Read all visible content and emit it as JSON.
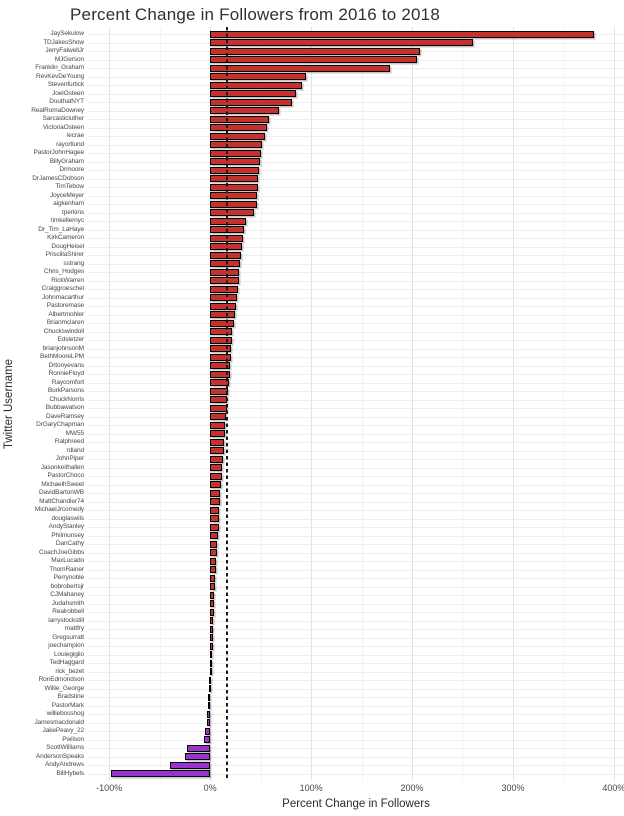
{
  "chart_data": {
    "type": "bar",
    "orientation": "horizontal",
    "title": "Percent Change in Followers from 2016 to 2018",
    "xlabel": "Percent Change in Followers",
    "ylabel": "Twitter Username",
    "xlim": [
      -121,
      410
    ],
    "x_ticks": [
      -100,
      0,
      100,
      200,
      300,
      400
    ],
    "x_tick_labels": [
      "-100%",
      "0%",
      "100%",
      "200%",
      "300%",
      "400%"
    ],
    "x_minor_ticks": [
      -50,
      50,
      150,
      250,
      350
    ],
    "grid": true,
    "reference_line": 17,
    "colors": {
      "positive": "#c5312d",
      "negative": "#9a32cd",
      "bar_border": "#000000",
      "reference_line": "#1a1a1a"
    },
    "categories": [
      "JaySekulow",
      "TDJakesShow",
      "JerryFalwellJr",
      "MJGerson",
      "Franklin_Graham",
      "RevKevDeYoung",
      "Stevenfurtick",
      "JoelOsteen",
      "DouthatNYT",
      "RealRomaDowney",
      "Sarcasticluther",
      "VictoriaOsteen",
      "lecrae",
      "rayortlund",
      "PastorJohnHagee",
      "BillyGraham",
      "Drmoore",
      "DrJamesCDobson",
      "TimTebow",
      "JoyceMeyer",
      "aigkenham",
      "tperkins",
      "timkellernyc",
      "Dr_Tim_LaHaye",
      "KirkCameron",
      "DougHeisel",
      "PriscillaShirer",
      "sstrang",
      "Chris_Hodges",
      "RickWarren",
      "Craiggroeschel",
      "Johnmacarthur",
      "Pastoremase",
      "Albertmohler",
      "Brianmclaren",
      "Chuckswindoll",
      "Edstetzer",
      "brianjohnsonM",
      "BethMooreLPM",
      "Drtonyevans",
      "RonnieFloyd",
      "Raycomfort",
      "BurkParsons",
      "ChuckNorris",
      "Bubbawatson",
      "DaveRamsey",
      "DrGaryChapman",
      "MW55",
      "Ralphreed",
      "rdland",
      "JohnPiper",
      "Jasonkeithallen",
      "PastorChoco",
      "MichaelhSweet",
      "DavidBartonWB",
      "MattChandler74",
      "MichaelJrcomedy",
      "douglaswils",
      "AndyStanley",
      "Philmunsey",
      "DanCathy",
      "CoachJoeGibbs",
      "MaxLucado",
      "ThomRainer",
      "Perrynoble",
      "bobrobertsjr",
      "CJMahaney",
      "Judahsmith",
      "Realrobbell",
      "larrystockstill",
      "mattfry",
      "Gregsurratt",
      "joechampion",
      "Louiegiglio",
      "TedHaggard",
      "rick_bezet",
      "RonEdmondson",
      "Willie_George",
      "Bradstine",
      "PastorMark",
      "williebosshog",
      "Jamesmacdonald",
      "JakePeavy_22",
      "Pwilson",
      "ScottWilliams",
      "AndersonSpeaks",
      "AndyAndrews",
      "BillHybels"
    ],
    "values": [
      380,
      260,
      208,
      205,
      178,
      95,
      91,
      85,
      81,
      68,
      58,
      56,
      54,
      51,
      50,
      49,
      48,
      47.5,
      47,
      46.5,
      46,
      43,
      36,
      34,
      33,
      32,
      31,
      29.5,
      29,
      28.5,
      27.5,
      26.5,
      25.5,
      25,
      24,
      22,
      21.5,
      21,
      20.5,
      20,
      19.5,
      19,
      18,
      17,
      16.5,
      16,
      15,
      14.5,
      14,
      13.5,
      13,
      12,
      11.5,
      11,
      10,
      9.5,
      9,
      8.5,
      8.5,
      7.5,
      7,
      6.5,
      6,
      5.6,
      5.2,
      4.9,
      4.3,
      4,
      3.6,
      3.3,
      3,
      2.8,
      2.5,
      2.2,
      2,
      0.4,
      -1,
      -1.3,
      -1.7,
      -2.3,
      -3,
      -3.5,
      -5,
      -6.5,
      -23,
      -25,
      -40,
      -98
    ]
  }
}
